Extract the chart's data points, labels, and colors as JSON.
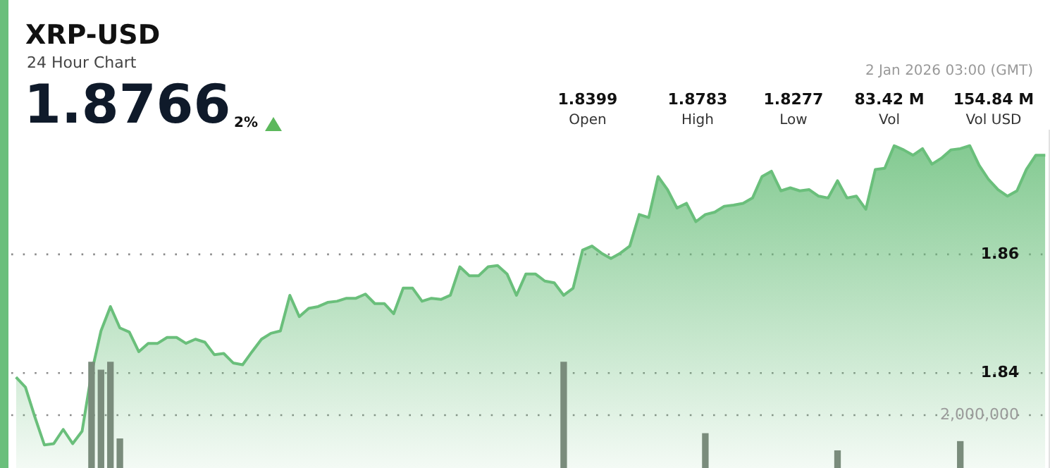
{
  "chart_data": {
    "type": "area",
    "title": "XRP-USD",
    "subtitle": "24 Hour Chart",
    "annotations": [
      "1.8766",
      "2%",
      "2 Jan 2026 03:00 (GMT)",
      "1.8399",
      "Open",
      "1.8783",
      "High",
      "1.8277",
      "Low",
      "83.42 M",
      "Vol",
      "154.84 M",
      "Vol USD"
    ],
    "categories": [
      null,
      null,
      null,
      null,
      null,
      null,
      null,
      null,
      null,
      null,
      null,
      null,
      null,
      null,
      null,
      null,
      null,
      null,
      null,
      null,
      null,
      null,
      null,
      null,
      null,
      null,
      null,
      null,
      null,
      null,
      null,
      null,
      null,
      null,
      null,
      null,
      null,
      null,
      null,
      null,
      null,
      null,
      null,
      null,
      null,
      null,
      null,
      null,
      null,
      null,
      null,
      null,
      null,
      null,
      null,
      null,
      null,
      null,
      null,
      null,
      null,
      null,
      null,
      null,
      null,
      null,
      null,
      null,
      null,
      null,
      null,
      null,
      null,
      null,
      null,
      null,
      null,
      null,
      null,
      null,
      null,
      null,
      null,
      null,
      null,
      null,
      null,
      null,
      null,
      null,
      null,
      null,
      null,
      null,
      null,
      null,
      null,
      null,
      null,
      null,
      null,
      null,
      null,
      null,
      null,
      null,
      null,
      null,
      null,
      null
    ],
    "series": [
      {
        "color": "#6abf7b",
        "values": [
          1.8393,
          1.8376,
          1.8326,
          1.8279,
          1.8281,
          1.8305,
          1.8281,
          1.8302,
          1.84,
          1.8471,
          1.8512,
          1.8476,
          1.8469,
          1.8436,
          1.845,
          1.845,
          1.846,
          1.846,
          1.845,
          1.8457,
          1.8452,
          1.8431,
          1.8433,
          1.8417,
          1.8414,
          1.8436,
          1.8457,
          1.8467,
          1.8471,
          1.8531,
          1.8495,
          1.8509,
          1.8512,
          1.8519,
          1.8521,
          1.8526,
          1.8526,
          1.8533,
          1.8517,
          1.8517,
          1.85,
          1.8543,
          1.8543,
          1.8521,
          1.8526,
          1.8524,
          1.8531,
          1.8579,
          1.8564,
          1.8564,
          1.8579,
          1.8581,
          1.8567,
          1.8531,
          1.8567,
          1.8567,
          1.8555,
          1.8552,
          1.8531,
          1.8543,
          1.8607,
          1.8614,
          1.8602,
          1.8593,
          1.8602,
          1.8614,
          1.8667,
          1.8662,
          1.8731,
          1.8709,
          1.8678,
          1.8686,
          1.8655,
          1.8667,
          1.8671,
          1.8681,
          1.8683,
          1.8686,
          1.8695,
          1.8731,
          1.874,
          1.8707,
          1.8712,
          1.8707,
          1.8709,
          1.8698,
          1.8695,
          1.8724,
          1.8695,
          1.8698,
          1.8676,
          1.8743,
          1.8745,
          1.8783,
          1.8776,
          1.8767,
          1.8778,
          1.8752,
          1.8762,
          1.8776,
          1.8778,
          1.8783,
          1.875,
          1.8726,
          1.8709,
          1.8698,
          1.8707,
          1.8743,
          1.8767,
          1.8767
        ]
      },
      {
        "type": "bar",
        "axis": "y2",
        "color": "#7a8c7c",
        "values": [
          null,
          null,
          null,
          null,
          null,
          null,
          null,
          null,
          4000000,
          3700000,
          4000000,
          1100000,
          null,
          null,
          null,
          null,
          null,
          null,
          null,
          null,
          null,
          null,
          null,
          null,
          null,
          null,
          null,
          null,
          null,
          null,
          null,
          null,
          null,
          null,
          null,
          null,
          null,
          null,
          null,
          null,
          null,
          null,
          null,
          null,
          null,
          null,
          null,
          null,
          null,
          null,
          null,
          null,
          null,
          null,
          null,
          null,
          null,
          null,
          4000000,
          null,
          null,
          null,
          null,
          null,
          null,
          null,
          null,
          null,
          null,
          null,
          null,
          null,
          null,
          1300000,
          null,
          null,
          null,
          null,
          null,
          null,
          null,
          null,
          null,
          null,
          null,
          null,
          null,
          650000,
          null,
          null,
          null,
          null,
          null,
          null,
          null,
          null,
          null,
          null,
          null,
          null,
          1000000,
          null,
          null,
          null,
          null,
          null,
          null,
          null,
          null,
          null
        ]
      }
    ],
    "ylim": [
      1.824,
      1.881
    ],
    "yticks": [
      1.84,
      1.86
    ],
    "y2lim": [
      0,
      12800000
    ],
    "y2ticks": [
      {
        "value": 2000000,
        "label": "2,000,000"
      }
    ],
    "grid": "y",
    "legend": false
  }
}
